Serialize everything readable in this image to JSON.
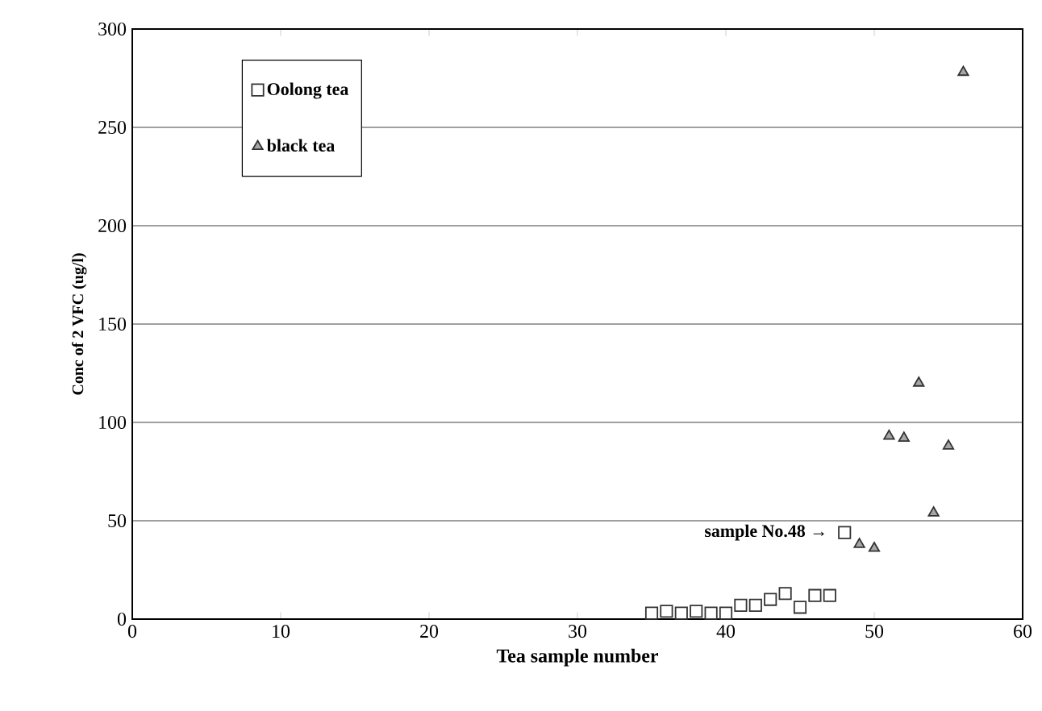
{
  "chart_data": {
    "type": "scatter",
    "xlabel": "Tea sample number",
    "ylabel": "Conc of 2 VFC (ug/l)",
    "xlim": [
      0,
      60
    ],
    "xticks": [
      0,
      10,
      20,
      30,
      40,
      50,
      60
    ],
    "ylim": [
      0,
      300
    ],
    "yticks": [
      0,
      50,
      100,
      150,
      200,
      250,
      300
    ],
    "grid": "y",
    "legend": "top left",
    "series": [
      {
        "name": "Oolong tea",
        "color": "#ffffff",
        "marker": "square",
        "x": [
          35,
          36,
          37,
          38,
          39,
          40,
          41,
          42,
          43,
          44,
          45,
          46,
          47,
          48
        ],
        "values": [
          3,
          4,
          3,
          4,
          3,
          3,
          7,
          7,
          10,
          13,
          6,
          12,
          12,
          44
        ]
      },
      {
        "name": "black tea",
        "color": "#a6a6a6",
        "marker": "triangle",
        "x": [
          49,
          50,
          51,
          52,
          53,
          54,
          55,
          56
        ],
        "values": [
          38,
          36,
          93,
          92,
          120,
          54,
          88,
          278
        ]
      }
    ],
    "annotations": [
      {
        "text": "sample No.48 →",
        "x": 48,
        "y": 44
      }
    ]
  }
}
